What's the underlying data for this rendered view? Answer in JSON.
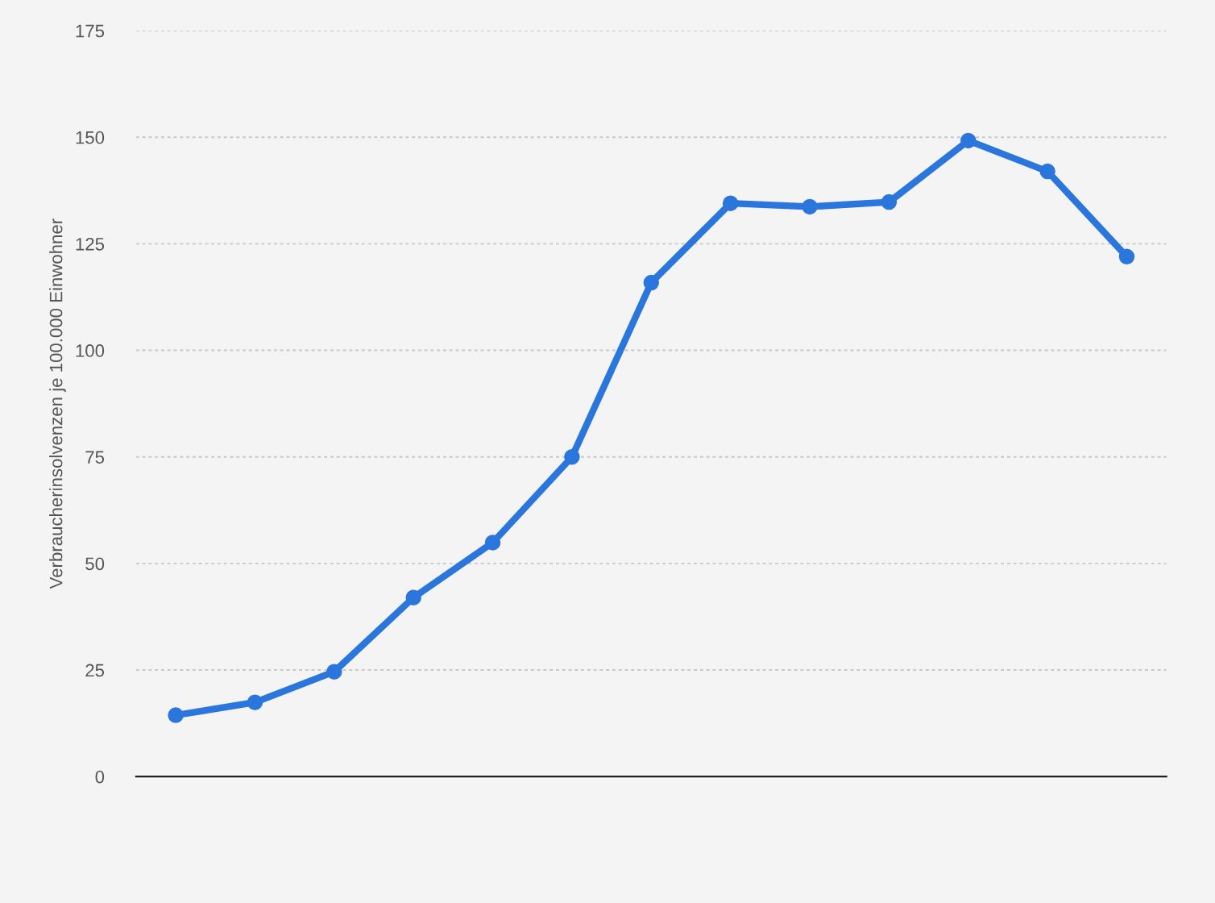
{
  "chart_data": {
    "type": "line",
    "ylabel": "Verbraucherinsolvenzen je 100.000 Einwohner",
    "categories": [
      null,
      null,
      null,
      null,
      null,
      null,
      null,
      null,
      null,
      null,
      null,
      null,
      null
    ],
    "series": [
      {
        "color": "#2a76dd",
        "values": [
          14.4,
          17.4,
          24.6,
          42,
          54.9,
          75,
          115.9,
          134.5,
          133.7,
          134.8,
          149.2,
          142,
          122
        ]
      }
    ],
    "ylim": [
      0,
      175
    ],
    "yticks": [
      0,
      25,
      50,
      75,
      100,
      125,
      150,
      175
    ],
    "grid": "y",
    "marker": "circle",
    "line_style": "solid",
    "legend": false
  }
}
